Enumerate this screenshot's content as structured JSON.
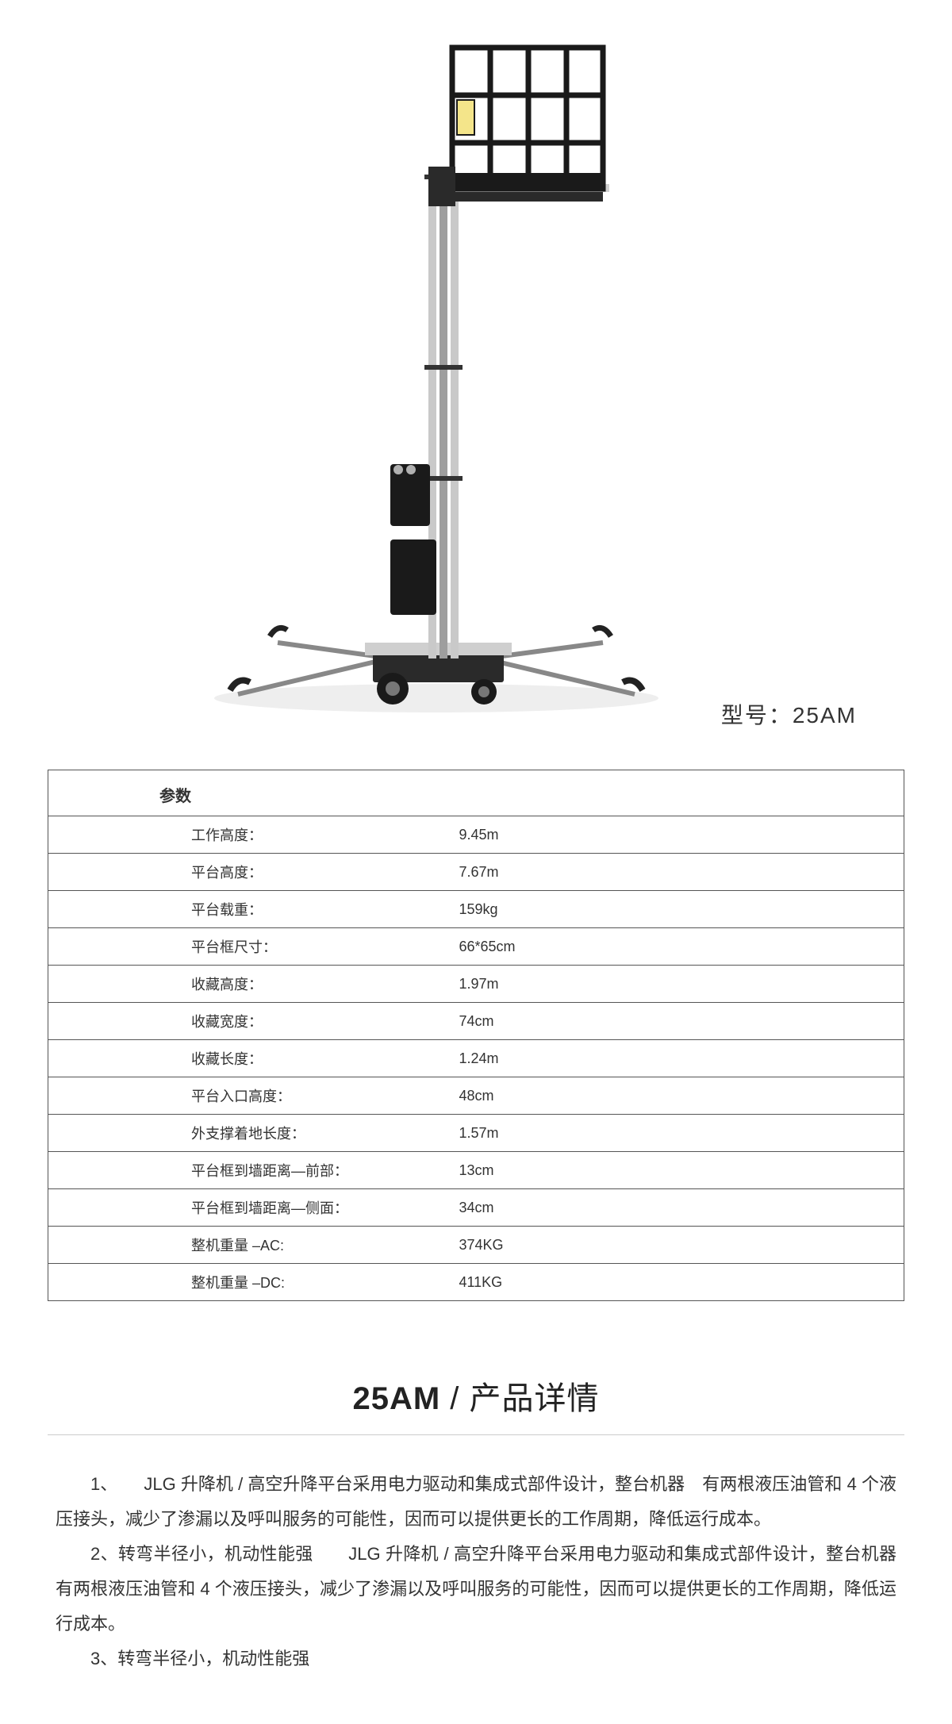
{
  "model": {
    "label_prefix": "型号：",
    "name": "25AM"
  },
  "illustration": {
    "background_color": "#ffffff",
    "metal_light": "#e8e8e8",
    "metal_mid": "#bdbdbd",
    "metal_dark": "#555555",
    "black": "#1a1a1a",
    "accent": "#8a8a8a"
  },
  "spec_table": {
    "header": "参数",
    "border_color": "#555555",
    "label_fontsize": 18,
    "rows": [
      {
        "label": "工作高度：",
        "value": "9.45m"
      },
      {
        "label": "平台高度：",
        "value": "7.67m"
      },
      {
        "label": "平台载重：",
        "value": "159kg"
      },
      {
        "label": "平台框尺寸：",
        "value": "66*65cm"
      },
      {
        "label": "收藏高度：",
        "value": "1.97m"
      },
      {
        "label": "收藏宽度：",
        "value": "74cm"
      },
      {
        "label": "收藏长度：",
        "value": "1.24m"
      },
      {
        "label": "平台入口高度：",
        "value": "48cm"
      },
      {
        "label": "外支撑着地长度：",
        "value": "1.57m"
      },
      {
        "label": "平台框到墙距离—前部：",
        "value": "13cm"
      },
      {
        "label": "平台框到墙距离—侧面：",
        "value": "34cm"
      },
      {
        "label": "整机重量 –AC:",
        "value": "374KG"
      },
      {
        "label": "整机重量 –DC:",
        "value": "411KG"
      }
    ]
  },
  "details": {
    "title_bold": "25AM",
    "title_sep": " / ",
    "title_rest": "产品详情",
    "title_fontsize": 40,
    "hr_color": "#cccccc",
    "body_fontsize": 22,
    "paragraphs": [
      "1、　　JLG 升降机 / 高空升降平台采用电力驱动和集成式部件设计，整台机器　有两根液压油管和 4 个液压接头，减少了渗漏以及呼叫服务的可能性，因而可以提供更长的工作周期，降低运行成本。",
      "2、转弯半径小，机动性能强　　JLG 升降机 / 高空升降平台采用电力驱动和集成式部件设计，整台机器　有两根液压油管和 4 个液压接头，减少了渗漏以及呼叫服务的可能性，因而可以提供更长的工作周期，降低运行成本。",
      "3、转弯半径小，机动性能强"
    ]
  }
}
